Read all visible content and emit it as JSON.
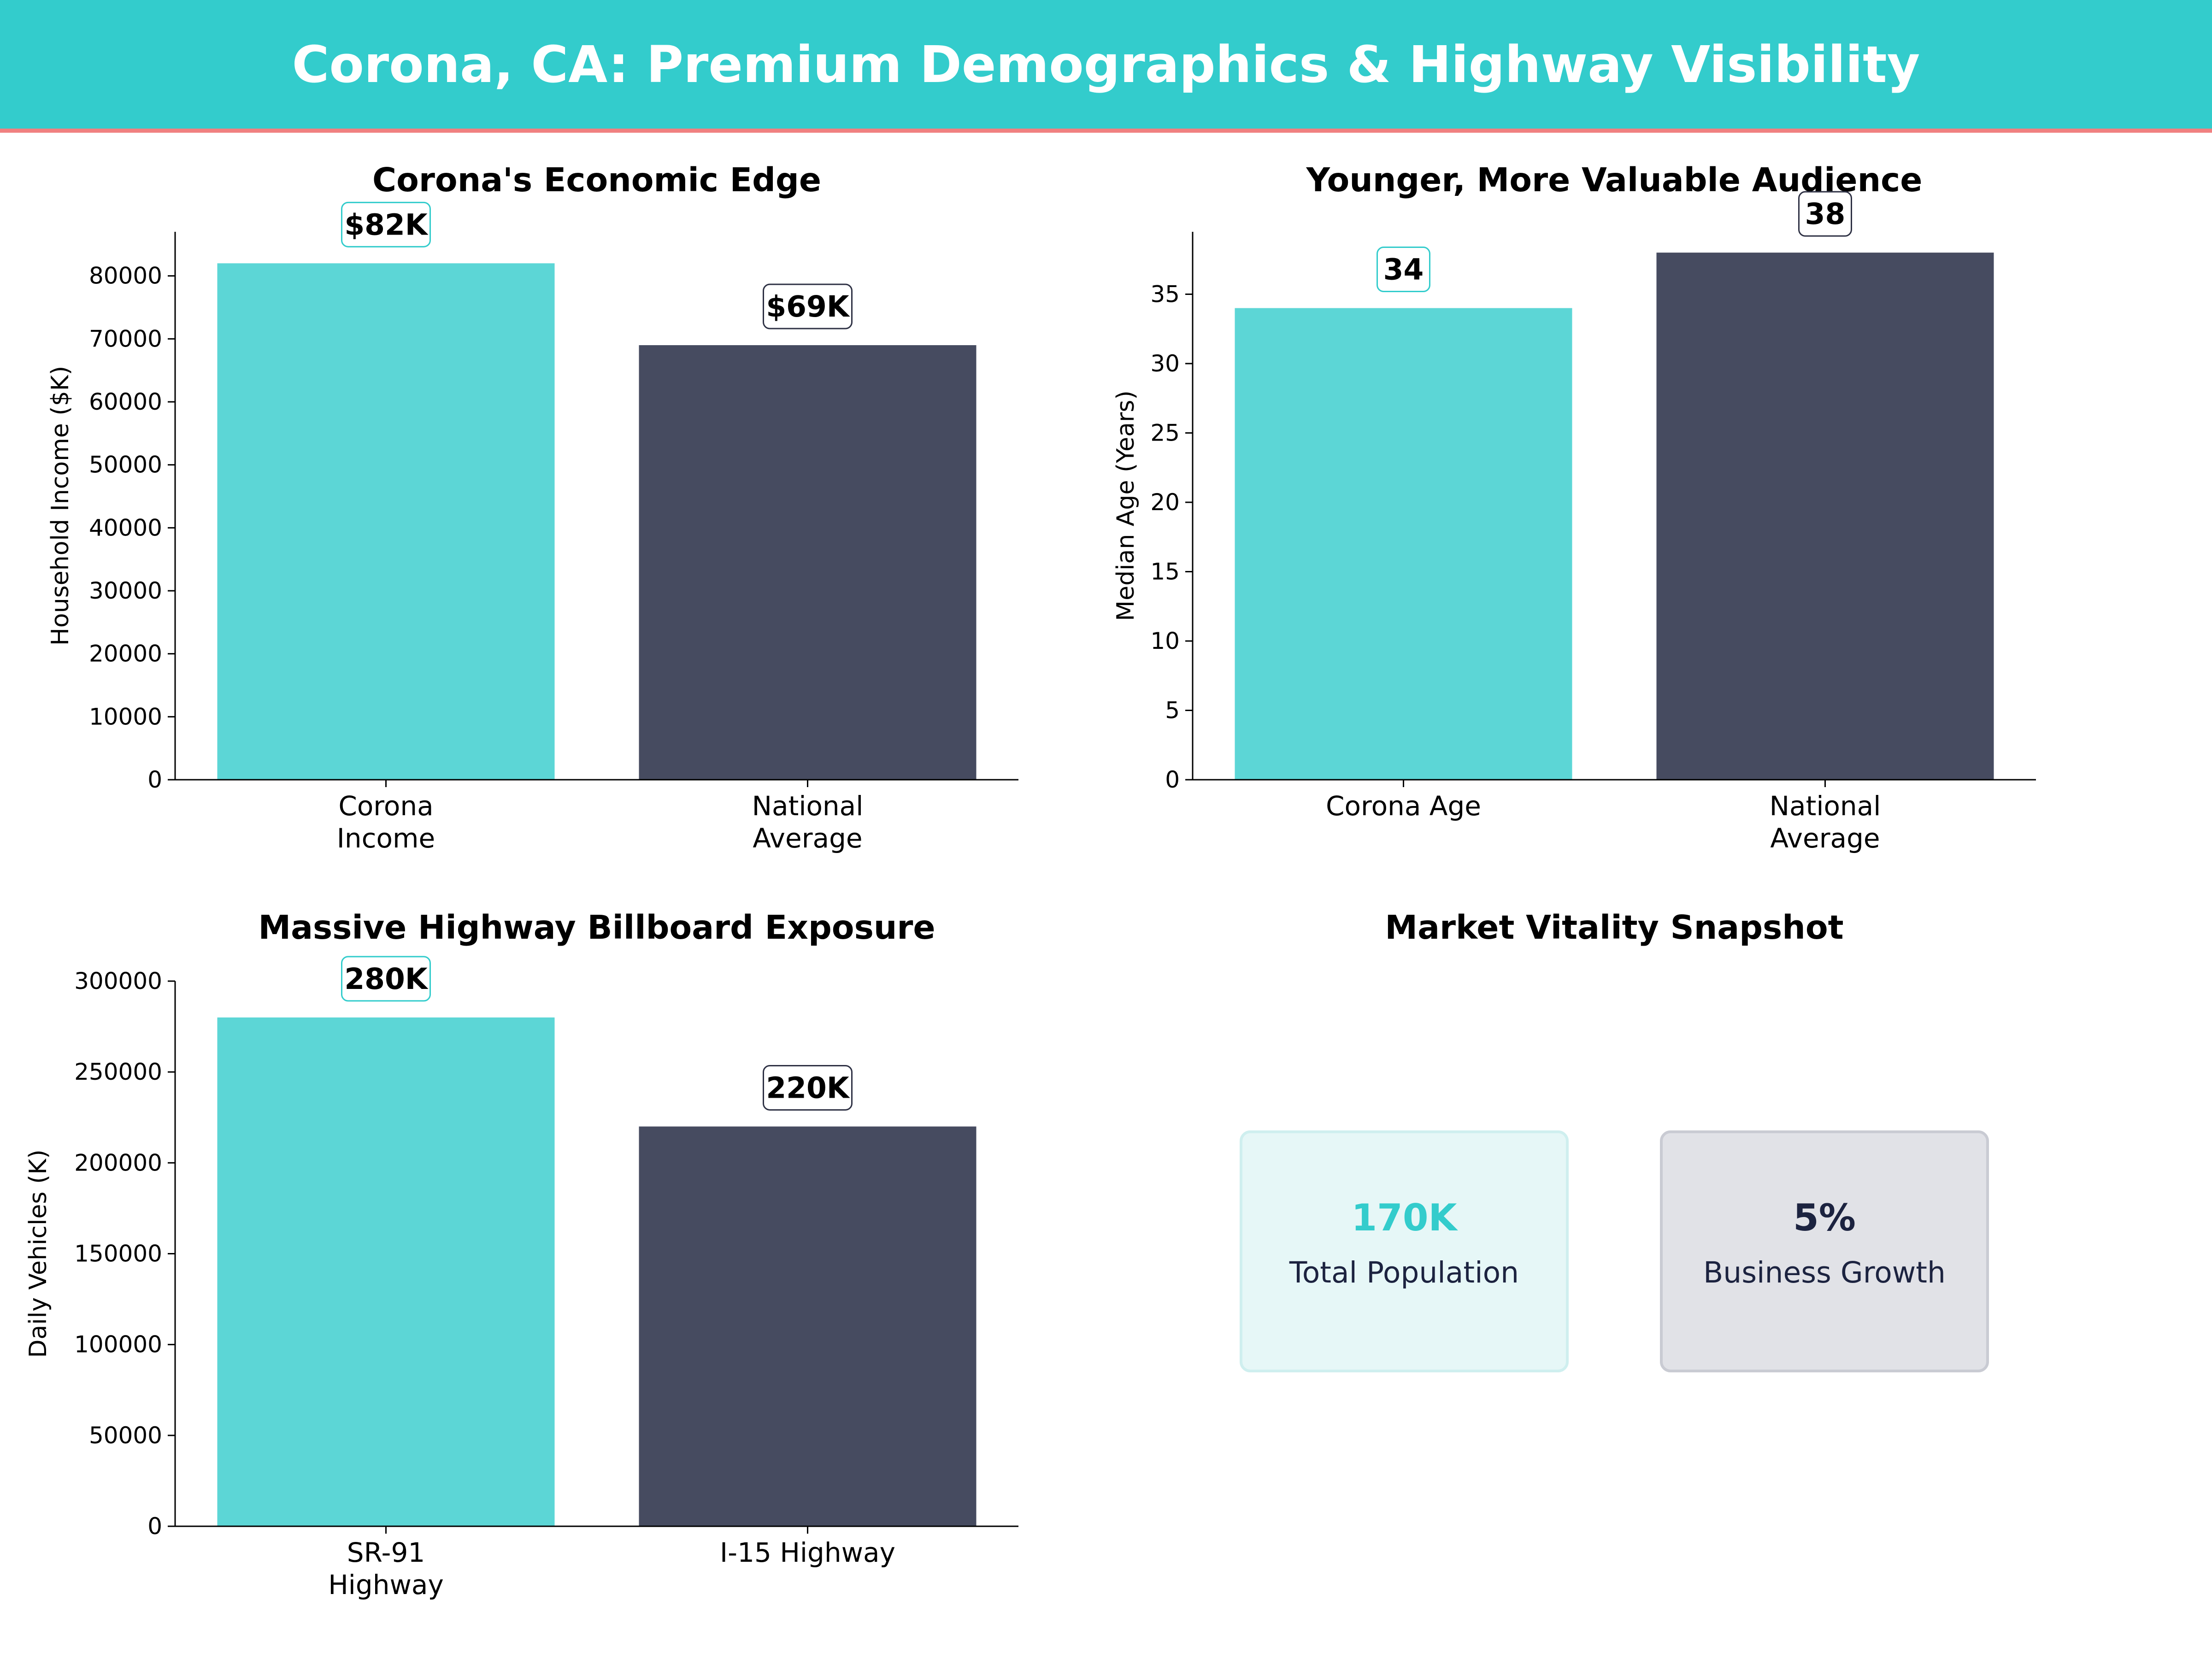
{
  "title": "Corona, CA: Premium Demographics & Highway Visibility",
  "colors": {
    "header_bg": "#33CCCC",
    "header_rule": "#F08080",
    "primary": "#5CD6D6",
    "secondary": "#464B60",
    "primary_label_border": "#33CCCC",
    "secondary_label_border": "#2E3144"
  },
  "chart_data": [
    {
      "type": "bar",
      "title": "Corona's Economic Edge",
      "ylabel": "Household Income ($K)",
      "xlabel": "",
      "categories": [
        [
          "Corona",
          "Income"
        ],
        [
          "National",
          "Average"
        ]
      ],
      "values": [
        82000,
        69000
      ],
      "value_labels": [
        "$82K",
        "$69K"
      ],
      "ylim": [
        0,
        87000
      ],
      "yticks": [
        0,
        10000,
        20000,
        30000,
        40000,
        50000,
        60000,
        70000,
        80000
      ],
      "grid": false
    },
    {
      "type": "bar",
      "title": "Younger, More Valuable Audience",
      "ylabel": "Median Age (Years)",
      "xlabel": "",
      "categories": [
        [
          "Corona Age"
        ],
        [
          "National",
          "Average"
        ]
      ],
      "values": [
        34,
        38
      ],
      "value_labels": [
        "34",
        "38"
      ],
      "ylim": [
        0,
        39.5
      ],
      "yticks": [
        0,
        5,
        10,
        15,
        20,
        25,
        30,
        35
      ],
      "grid": false
    },
    {
      "type": "bar",
      "title": "Massive Highway Billboard Exposure",
      "ylabel": "Daily Vehicles (K)",
      "xlabel": "",
      "categories": [
        [
          "SR-91",
          "Highway"
        ],
        [
          "I-15 Highway"
        ]
      ],
      "values": [
        280000,
        220000
      ],
      "value_labels": [
        "280K",
        "220K"
      ],
      "ylim": [
        0,
        300000
      ],
      "yticks": [
        0,
        50000,
        100000,
        150000,
        200000,
        250000,
        300000
      ],
      "grid": false
    }
  ],
  "snapshot": {
    "title": "Market Vitality Snapshot",
    "cards": [
      {
        "value": "170K",
        "label": "Total Population"
      },
      {
        "value": "5%",
        "label": "Business Growth"
      }
    ]
  }
}
